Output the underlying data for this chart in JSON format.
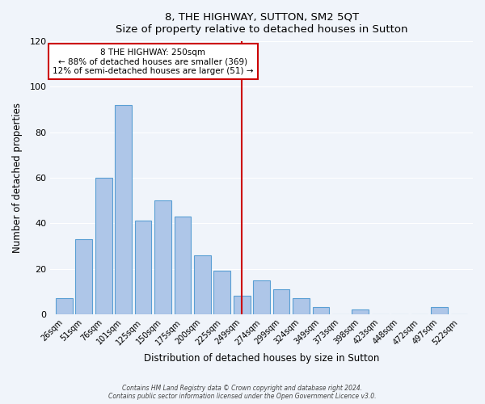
{
  "title": "8, THE HIGHWAY, SUTTON, SM2 5QT",
  "subtitle": "Size of property relative to detached houses in Sutton",
  "xlabel": "Distribution of detached houses by size in Sutton",
  "ylabel": "Number of detached properties",
  "bar_labels": [
    "26sqm",
    "51sqm",
    "76sqm",
    "101sqm",
    "125sqm",
    "150sqm",
    "175sqm",
    "200sqm",
    "225sqm",
    "249sqm",
    "274sqm",
    "299sqm",
    "324sqm",
    "349sqm",
    "373sqm",
    "398sqm",
    "423sqm",
    "448sqm",
    "472sqm",
    "497sqm",
    "522sqm"
  ],
  "bar_values": [
    7,
    33,
    60,
    92,
    41,
    50,
    43,
    26,
    19,
    8,
    15,
    11,
    7,
    3,
    0,
    2,
    0,
    0,
    0,
    3,
    0
  ],
  "bar_color": "#aec6e8",
  "bar_edge_color": "#5a9fd4",
  "vline_color": "#cc0000",
  "annotation_title": "8 THE HIGHWAY: 250sqm",
  "annotation_line1": "← 88% of detached houses are smaller (369)",
  "annotation_line2": "12% of semi-detached houses are larger (51) →",
  "annotation_box_color": "#ffffff",
  "annotation_box_edge": "#cc0000",
  "ylim": [
    0,
    120
  ],
  "footnote1": "Contains HM Land Registry data © Crown copyright and database right 2024.",
  "footnote2": "Contains public sector information licensed under the Open Government Licence v3.0.",
  "background_color": "#f0f4fa"
}
